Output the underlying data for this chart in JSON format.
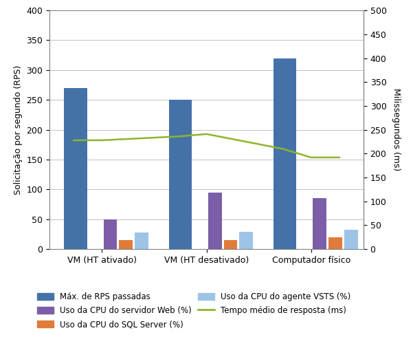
{
  "categories": [
    "VM (HT ativado)",
    "VM (HT desativado)",
    "Computador físico"
  ],
  "rps": [
    270,
    250,
    320
  ],
  "cpu_web": [
    50,
    95,
    85
  ],
  "cpu_sql": [
    15,
    15,
    20
  ],
  "cpu_vsts": [
    28,
    29,
    32
  ],
  "response_time_x": [
    -0.27,
    0.0,
    0.73,
    1.0,
    1.73,
    2.0,
    2.27
  ],
  "response_time_y": [
    228,
    228,
    236,
    241,
    210,
    192,
    192
  ],
  "colors": {
    "rps": "#4472A8",
    "cpu_web": "#7B5EA7",
    "cpu_sql": "#E07B39",
    "cpu_vsts": "#9DC3E6",
    "response": "#8DB52A"
  },
  "ylim_left": [
    0,
    400
  ],
  "ylim_right": [
    0,
    500
  ],
  "yticks_left": [
    0,
    50,
    100,
    150,
    200,
    250,
    300,
    350,
    400
  ],
  "yticks_right": [
    0,
    50,
    100,
    150,
    200,
    250,
    300,
    350,
    400,
    450,
    500
  ],
  "ylabel_left": "Solicitação por segundo (RPS)",
  "ylabel_right": "Milissegundos (ms)",
  "legend_rps": "Máx. de RPS passadas",
  "legend_cpu_web": "Uso da CPU do servidor Web (%)",
  "legend_cpu_sql": "Uso da CPU do SQL Server (%)",
  "legend_cpu_vsts": "Uso da CPU do agente VSTS (%)",
  "legend_response": "Tempo médio de resposta (ms)",
  "background_color": "#FFFFFF",
  "plot_bg_color": "#FFFFFF",
  "bar_width": 0.15,
  "grid_color": "#C0C0C0"
}
